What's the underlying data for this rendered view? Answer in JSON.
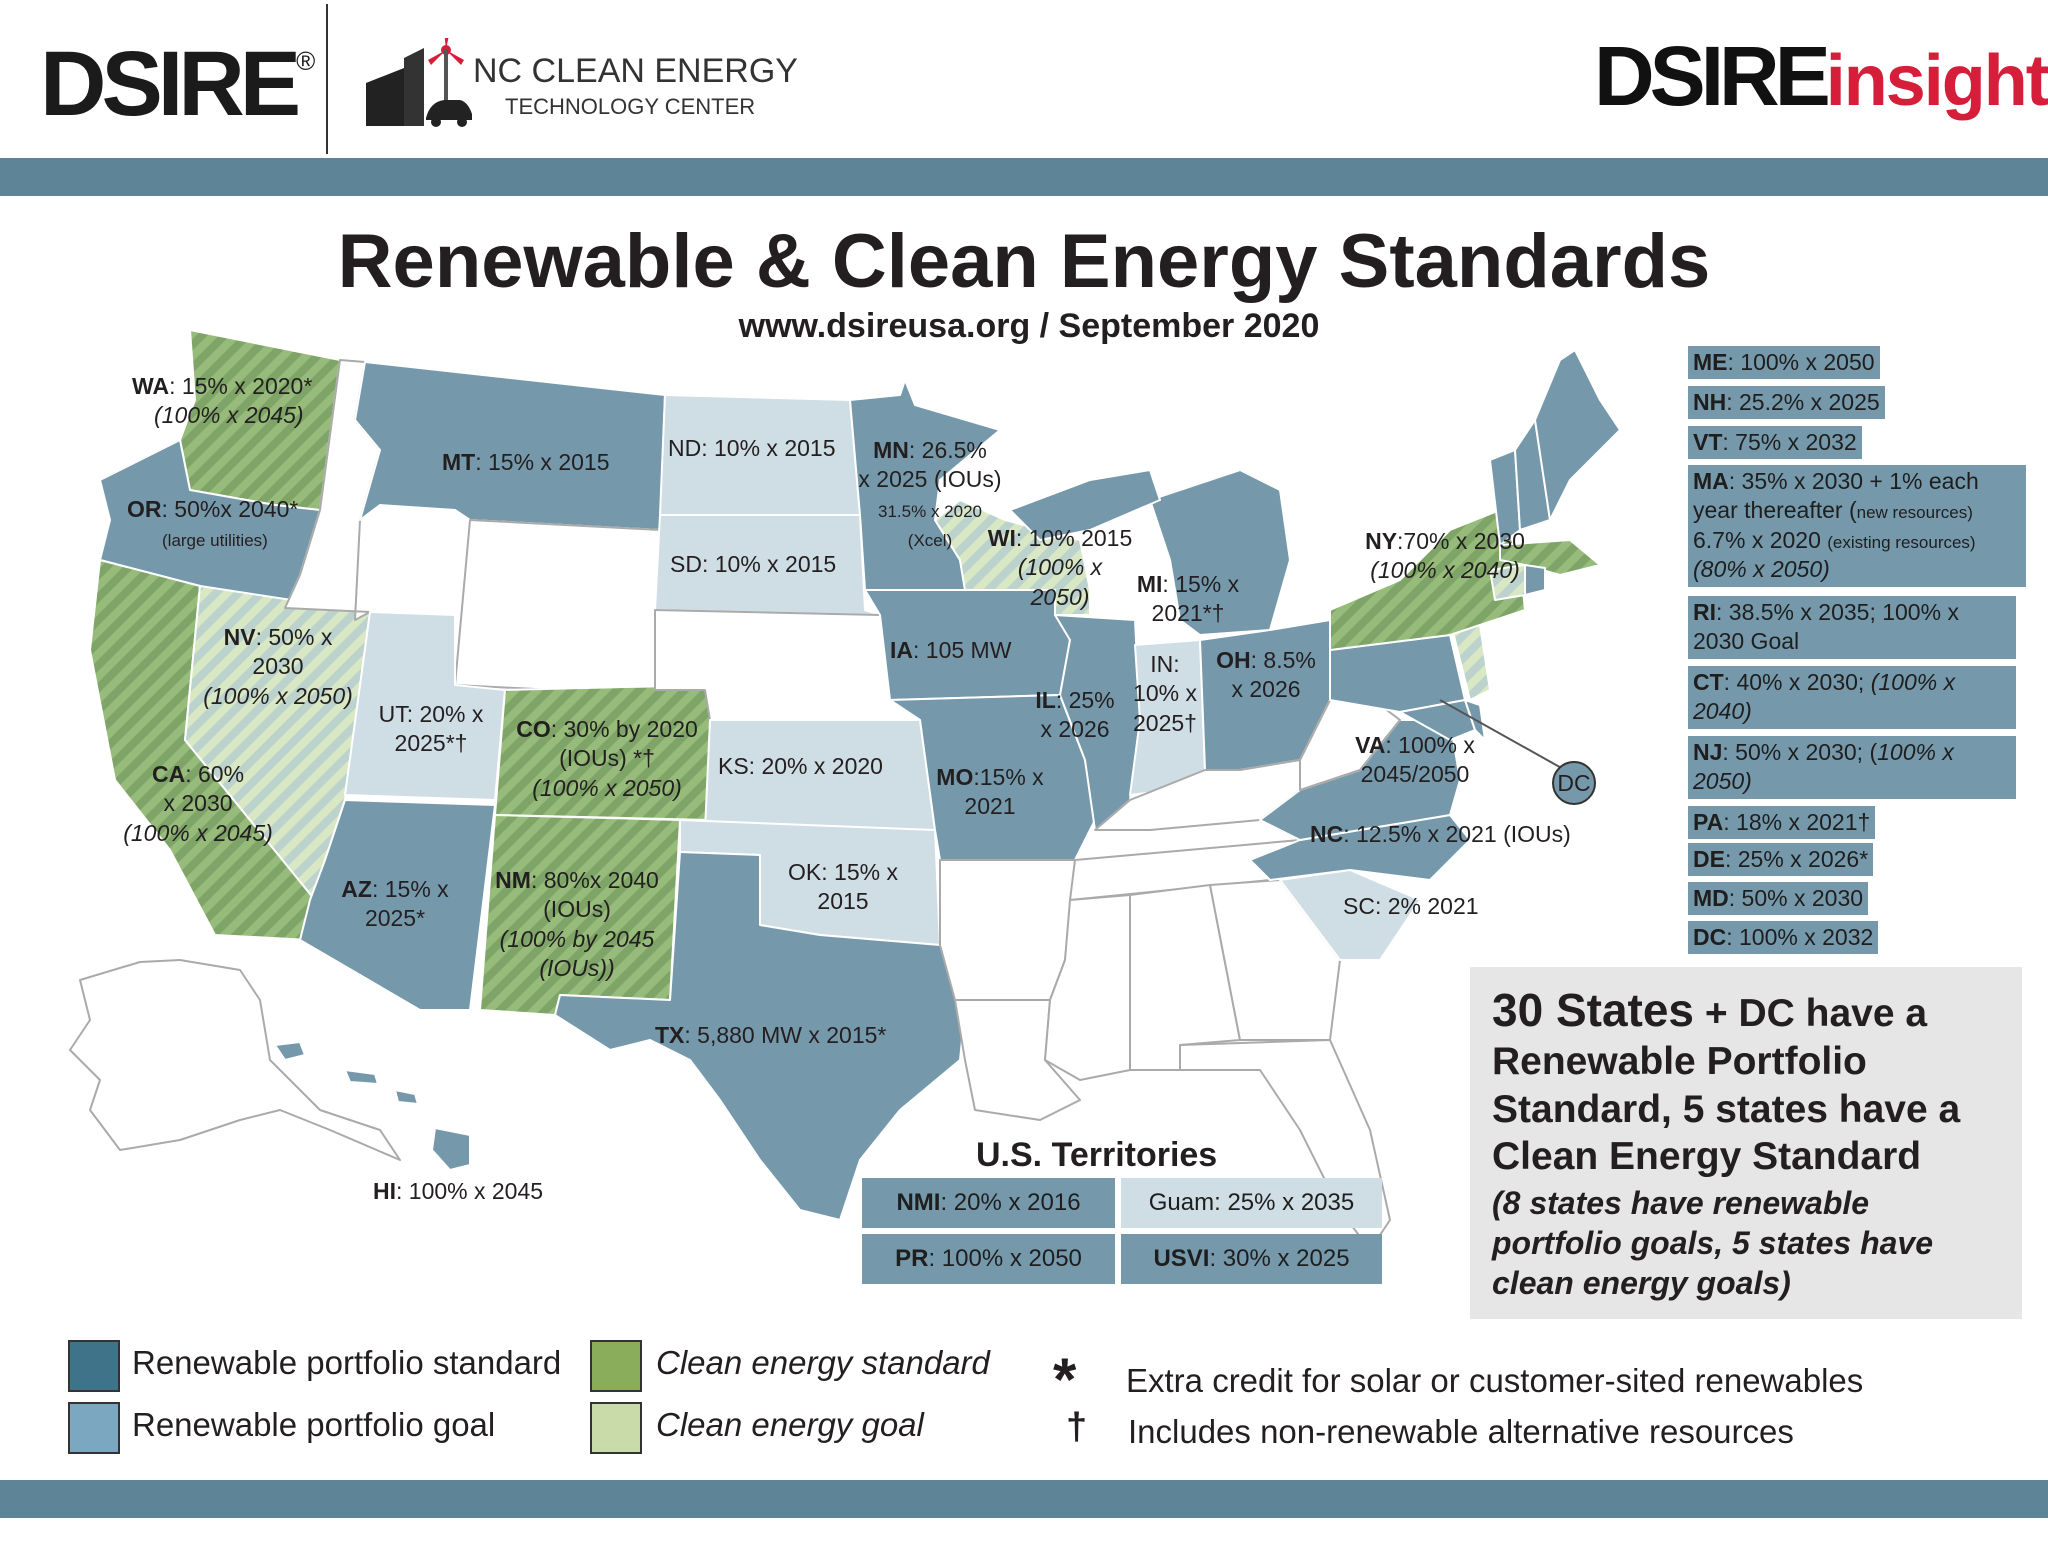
{
  "header": {
    "dsire_logo": "DSIRE",
    "registered_mark": "®",
    "nc_line1": "NC CLEAN ENERGY",
    "nc_line2": "TECHNOLOGY CENTER",
    "insight_logo_a": "DSIRE",
    "insight_logo_b": "insight"
  },
  "title": "Renewable & Clean Energy Standards",
  "subtitle": "www.dsireusa.org / September 2020",
  "colors": {
    "band": "#5e8497",
    "rps_standard": "#3e7389",
    "rps_state_fill": "#7599ab",
    "rps_goal": "#cfdde5",
    "clean_energy_standard": "#8aad5c",
    "clean_energy_goal": "#c9dba9",
    "no_standard": "#ffffff"
  },
  "states": {
    "wa": {
      "abbr": "WA",
      "text": ": 15% x 2020*",
      "goal": "(100% x 2045)"
    },
    "or": {
      "abbr": "OR",
      "text": ": 50%x 2040*",
      "note": "(large utilities)"
    },
    "ca": {
      "abbr": "CA",
      "text": ": 60%",
      "line2": "x 2030",
      "goal": "(100% x 2045)"
    },
    "nv": {
      "abbr": "NV",
      "text": ": 50% x",
      "line2": "2030",
      "goal": "(100% x 2050)"
    },
    "mt": {
      "abbr": "MT",
      "text": ": 15% x 2015"
    },
    "ut": {
      "line1": "UT: 20% x",
      "line2": "2025*†"
    },
    "az": {
      "abbr": "AZ",
      "text": ": 15% x",
      "line2": "2025*"
    },
    "co": {
      "abbr": "CO",
      "text": ": 30% by 2020",
      "line2": "(IOUs) *†",
      "goal": "(100% x 2050)"
    },
    "nm": {
      "abbr": "NM",
      "text": ": 80%x 2040",
      "line2": "(IOUs)",
      "goal": "(100% by 2045",
      "goal2": "(IOUs))"
    },
    "nd": {
      "text": "ND: 10% x 2015"
    },
    "sd": {
      "text": "SD: 10% x 2015"
    },
    "ks": {
      "text": "KS: 20% x 2020"
    },
    "ok": {
      "line1": "OK: 15% x",
      "line2": "2015"
    },
    "tx": {
      "abbr": "TX",
      "text": ": 5,880 MW x 2015*"
    },
    "mn": {
      "abbr": "MN",
      "text": ": 26.5%",
      "line2": "x 2025 (IOUs)",
      "note": "31.5% x 2020",
      "note2": "(Xcel)"
    },
    "ia": {
      "abbr": "IA",
      "text": ": 105 MW"
    },
    "mo": {
      "abbr": "MO",
      "text": ":15% x",
      "line2": "2021"
    },
    "wi": {
      "abbr": "WI",
      "text": ": 10% 2015",
      "goal": "(100% x",
      "goal2": "2050)"
    },
    "il": {
      "abbr": "IL",
      "text": ": 25%",
      "line2": "x 2026"
    },
    "mi": {
      "abbr": "MI",
      "text": ": 15% x",
      "line2": "2021*†"
    },
    "in": {
      "line1": "IN:",
      "line2": "10% x",
      "line3": "2025†"
    },
    "oh": {
      "abbr": "OH",
      "text": ": 8.5%",
      "line2": "x 2026"
    },
    "ny": {
      "abbr": "NY",
      "text": ":70% x 2030",
      "goal": "(100% x 2040)"
    },
    "va": {
      "abbr": "VA",
      "text": ": 100% x",
      "line2": "2045/2050"
    },
    "nc": {
      "abbr": "NC",
      "text": ": 12.5% x 2021 (IOUs)"
    },
    "sc": {
      "text": "SC: 2% 2021"
    },
    "hi": {
      "abbr": "HI",
      "text": ": 100% x 2045"
    },
    "dc_marker": "DC"
  },
  "sidebar": [
    {
      "abbr": "ME",
      "text": ": 100% x 2050"
    },
    {
      "abbr": "NH",
      "text": ": 25.2% x 2025"
    },
    {
      "abbr": "VT",
      "text": ": 75% x 2032"
    },
    {
      "abbr": "MA",
      "text": ": 35% x 2030 + 1% each",
      "line2": "year thereafter (",
      "line2_small": "new resources)",
      "line3": "6.7% x 2020 ",
      "line3_small": "(existing resources)",
      "line4": "(80% x 2050)"
    },
    {
      "abbr": "RI",
      "text": ": 38.5% x 2035; 100% x",
      "line2": "2030 Goal"
    },
    {
      "abbr": "CT",
      "text": ": 40% x 2030; ",
      "italic": "(100% x",
      "line2": "2040)"
    },
    {
      "abbr": "NJ",
      "text": ": 50% x 2030; (",
      "italic": "100% x",
      "line2": "2050)"
    },
    {
      "abbr": "PA",
      "text": ": 18% x 2021†"
    },
    {
      "abbr": "DE",
      "text": ": 25% x 2026*"
    },
    {
      "abbr": "MD",
      "text": ": 50% x 2030"
    },
    {
      "abbr": "DC",
      "text": ": 100% x 2032"
    }
  ],
  "summary": {
    "count": "30 States",
    "line1_rest": " + DC have a",
    "line2": "Renewable Portfolio",
    "line3": "Standard, 5 states have a",
    "line4": "Clean Energy Standard",
    "note1": "(8 states have renewable",
    "note2": "portfolio goals, 5 states have",
    "note3": "clean energy goals)"
  },
  "territories": {
    "title": "U.S. Territories",
    "nmi": {
      "abbr": "NMI",
      "text": ": 20% x 2016"
    },
    "guam": {
      "text": "Guam: 25% x 2035"
    },
    "pr": {
      "abbr": "PR",
      "text": ": 100% x 2050"
    },
    "usvi": {
      "abbr": "USVI",
      "text": ": 30% x 2025"
    }
  },
  "legend": {
    "rps_standard": "Renewable portfolio standard",
    "rps_goal": "Renewable portfolio goal",
    "ces_standard": "Clean energy standard",
    "ces_goal": "Clean energy goal",
    "asterisk_symbol": "*",
    "asterisk_text": "Extra credit for solar or customer-sited renewables",
    "dagger_symbol": "†",
    "dagger_text": "Includes non-renewable alternative resources"
  }
}
